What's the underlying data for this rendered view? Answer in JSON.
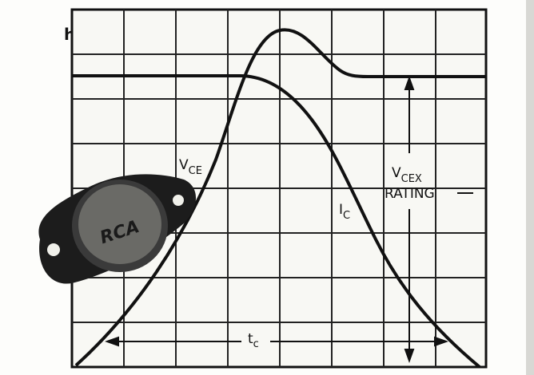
{
  "left_fragment": "h",
  "labels": {
    "vce": {
      "main": "V",
      "sub": "CE"
    },
    "ic": {
      "main": "I",
      "sub": "C"
    },
    "vcex": {
      "main": "V",
      "sub": "CEX",
      "line2": "RATING"
    },
    "tc": {
      "main": "t",
      "sub": "c"
    }
  },
  "logo": "RCA"
}
